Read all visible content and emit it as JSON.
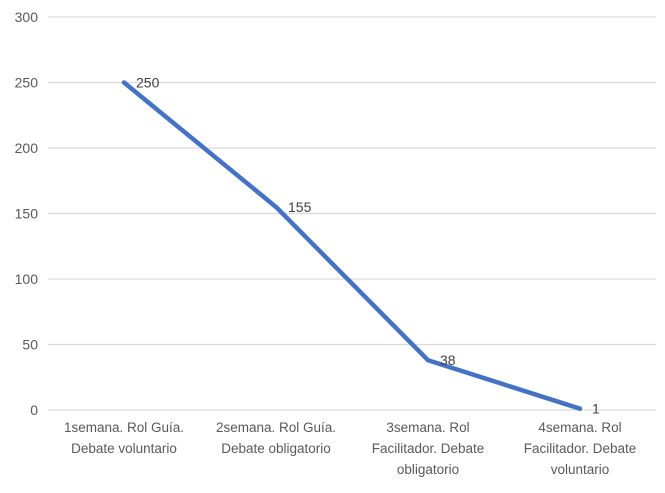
{
  "chart_data": {
    "type": "line",
    "title": "",
    "xlabel": "",
    "ylabel": "",
    "legend": "none",
    "grid": true,
    "categories": [
      [
        "1semana. Rol Guía.",
        "Debate voluntario"
      ],
      [
        "2semana. Rol Guía.",
        "Debate obligatorio"
      ],
      [
        "3semana. Rol",
        "Facilitador. Debate",
        "obligatorio"
      ],
      [
        "4semana. Rol",
        "Facilitador. Debate",
        "voluntario"
      ]
    ],
    "values": [
      250,
      155,
      38,
      1
    ],
    "data_labels": [
      "250",
      "155",
      "38",
      "1"
    ],
    "yticks": [
      0,
      50,
      100,
      150,
      200,
      250,
      300
    ],
    "ylim": [
      0,
      300
    ],
    "colors": {
      "line": "#4472C4",
      "gridline": "#D9D9D9",
      "axis_text": "#595959",
      "data_label_text": "#404040",
      "background": "#FFFFFF"
    }
  }
}
